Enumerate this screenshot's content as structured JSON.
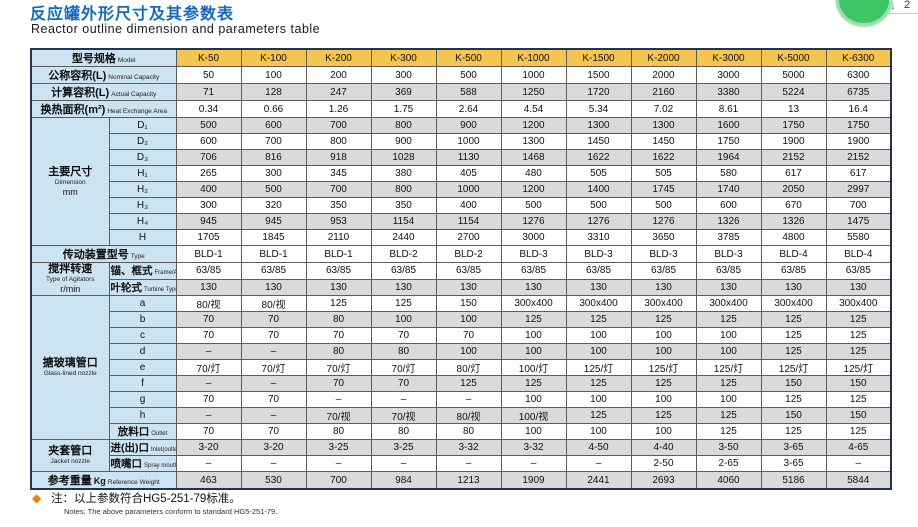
{
  "page": {
    "title_zh": "反应罐外形尺寸及其参数表",
    "title_en": "Reactor outline dimension and parameters table"
  },
  "badge": {
    "arrow": "↓",
    "count": "2",
    "green": "#3dc565"
  },
  "colors": {
    "title_blue": "#1468be",
    "header_yellow": "#f5c54f",
    "label_blue": "#cce3f1",
    "stripe_gray": "#dadada",
    "diamond_orange": "#e8801e"
  },
  "table": {
    "header": {
      "label_zh": "型号规格",
      "label_en": "Model",
      "models": [
        "K-50",
        "K-100",
        "K-200",
        "K-300",
        "K-500",
        "K-1000",
        "K-1500",
        "K-2000",
        "K-3000",
        "K-5000",
        "K-6300"
      ]
    },
    "groups": {
      "dimension": {
        "zh": "主要尺寸",
        "en": "Dimension",
        "unit": "mm",
        "span": 8
      },
      "agitator": {
        "zh": "搅拌转速",
        "en": "Type of Agitators",
        "unit": "r/min",
        "span": 2
      },
      "nozzle": {
        "zh": "搪玻璃管口",
        "en": "Glass-lined nozzle",
        "unit": "",
        "span": 9
      },
      "jacket": {
        "zh": "夹套管口",
        "en": "Jacket nozzle",
        "unit": "",
        "span": 2
      }
    },
    "rows": [
      {
        "id": "nominal",
        "full": true,
        "label_zh": "公称容积(L)",
        "label_en": "Nominal Capacity",
        "shade": false,
        "values": [
          "50",
          "100",
          "200",
          "300",
          "500",
          "1000",
          "1500",
          "2000",
          "3000",
          "5000",
          "6300"
        ]
      },
      {
        "id": "actual",
        "full": true,
        "label_zh": "计算容积(L)",
        "label_en": "Actual Capacity",
        "shade": true,
        "values": [
          "71",
          "128",
          "247",
          "369",
          "588",
          "1250",
          "1720",
          "2160",
          "3380",
          "5224",
          "6735"
        ]
      },
      {
        "id": "heat",
        "full": true,
        "label_zh": "换热面积(m²)",
        "label_en": "Heat Exchange Area",
        "shade": false,
        "values": [
          "0.34",
          "0.66",
          "1.26",
          "1.75",
          "2.64",
          "4.54",
          "5.34",
          "7.02",
          "8.61",
          "13",
          "16.4"
        ]
      },
      {
        "id": "d1",
        "group": "dimension",
        "sub": "D₁",
        "shade": true,
        "values": [
          "500",
          "600",
          "700",
          "800",
          "900",
          "1200",
          "1300",
          "1300",
          "1600",
          "1750",
          "1750"
        ]
      },
      {
        "id": "d2",
        "group": "dimension",
        "sub": "D₂",
        "shade": false,
        "values": [
          "600",
          "700",
          "800",
          "900",
          "1000",
          "1300",
          "1450",
          "1450",
          "1750",
          "1900",
          "1900"
        ]
      },
      {
        "id": "d3",
        "group": "dimension",
        "sub": "D₃",
        "shade": true,
        "values": [
          "706",
          "816",
          "918",
          "1028",
          "1130",
          "1468",
          "1622",
          "1622",
          "1964",
          "2152",
          "2152"
        ]
      },
      {
        "id": "h1",
        "group": "dimension",
        "sub": "H₁",
        "shade": false,
        "values": [
          "265",
          "300",
          "345",
          "380",
          "405",
          "480",
          "505",
          "505",
          "580",
          "617",
          "617"
        ]
      },
      {
        "id": "h2",
        "group": "dimension",
        "sub": "H₂",
        "shade": true,
        "values": [
          "400",
          "500",
          "700",
          "800",
          "1000",
          "1200",
          "1400",
          "1745",
          "1740",
          "2050",
          "2997"
        ]
      },
      {
        "id": "h3",
        "group": "dimension",
        "sub": "H₃",
        "shade": false,
        "values": [
          "300",
          "320",
          "350",
          "350",
          "400",
          "500",
          "500",
          "500",
          "600",
          "670",
          "700"
        ]
      },
      {
        "id": "h4",
        "group": "dimension",
        "sub": "H₄",
        "shade": true,
        "values": [
          "945",
          "945",
          "953",
          "1154",
          "1154",
          "1276",
          "1276",
          "1276",
          "1326",
          "1326",
          "1475"
        ]
      },
      {
        "id": "h",
        "group": "dimension",
        "sub": "H",
        "shade": false,
        "values": [
          "1705",
          "1845",
          "2110",
          "2440",
          "2700",
          "3000",
          "3310",
          "3650",
          "3785",
          "4800",
          "5580"
        ]
      },
      {
        "id": "type",
        "full": true,
        "label_zh": "传动装置型号",
        "label_en": "Type",
        "shade": false,
        "values": [
          "BLD-1",
          "BLD-1",
          "BLD-1",
          "BLD-2",
          "BLD-2",
          "BLD-3",
          "BLD-3",
          "BLD-3",
          "BLD-3",
          "BLD-4",
          "BLD-4"
        ]
      },
      {
        "id": "frame",
        "group": "agitator",
        "sub_zh": "锚、框式",
        "sub_en": "Frame/Anchor Type",
        "shade": false,
        "values": [
          "63/85",
          "63/85",
          "63/85",
          "63/85",
          "63/85",
          "63/85",
          "63/85",
          "63/85",
          "63/85",
          "63/85",
          "63/85"
        ]
      },
      {
        "id": "turbine",
        "group": "agitator",
        "sub_zh": "叶轮式",
        "sub_en": "Turbine Type",
        "shade": true,
        "values": [
          "130",
          "130",
          "130",
          "130",
          "130",
          "130",
          "130",
          "130",
          "130",
          "130",
          "130"
        ]
      },
      {
        "id": "a",
        "group": "nozzle",
        "sub": "a",
        "shade": false,
        "values": [
          "80/视",
          "80/视",
          "125",
          "125",
          "150",
          "300x400",
          "300x400",
          "300x400",
          "300x400",
          "300x400",
          "300x400"
        ]
      },
      {
        "id": "b",
        "group": "nozzle",
        "sub": "b",
        "shade": true,
        "values": [
          "70",
          "70",
          "80",
          "100",
          "100",
          "125",
          "125",
          "125",
          "125",
          "125",
          "125"
        ]
      },
      {
        "id": "c",
        "group": "nozzle",
        "sub": "c",
        "shade": false,
        "values": [
          "70",
          "70",
          "70",
          "70",
          "70",
          "100",
          "100",
          "100",
          "100",
          "125",
          "125"
        ]
      },
      {
        "id": "d",
        "group": "nozzle",
        "sub": "d",
        "shade": true,
        "values": [
          "–",
          "–",
          "80",
          "80",
          "100",
          "100",
          "100",
          "100",
          "100",
          "125",
          "125"
        ]
      },
      {
        "id": "e",
        "group": "nozzle",
        "sub": "e",
        "shade": false,
        "values": [
          "70/灯",
          "70/灯",
          "70/灯",
          "70/灯",
          "80/灯",
          "100/灯",
          "125/灯",
          "125/灯",
          "125/灯",
          "125/灯",
          "125/灯"
        ]
      },
      {
        "id": "f",
        "group": "nozzle",
        "sub": "f",
        "shade": true,
        "values": [
          "–",
          "–",
          "70",
          "70",
          "125",
          "125",
          "125",
          "125",
          "125",
          "150",
          "150"
        ]
      },
      {
        "id": "g",
        "group": "nozzle",
        "sub": "g",
        "shade": false,
        "values": [
          "70",
          "70",
          "–",
          "–",
          "–",
          "100",
          "100",
          "100",
          "100",
          "125",
          "125"
        ]
      },
      {
        "id": "h_noz",
        "group": "nozzle",
        "sub": "h",
        "shade": true,
        "values": [
          "–",
          "–",
          "70/视",
          "70/视",
          "80/视",
          "100/视",
          "125",
          "125",
          "125",
          "150",
          "150"
        ]
      },
      {
        "id": "outlet",
        "group": "nozzle",
        "sub_zh": "放料口",
        "sub_en": "Outlet",
        "shade": false,
        "values": [
          "70",
          "70",
          "80",
          "80",
          "80",
          "100",
          "100",
          "100",
          "125",
          "125",
          "125"
        ]
      },
      {
        "id": "inlet",
        "group": "jacket",
        "sub_zh": "进(出)口",
        "sub_en": "Inlet(outlet)",
        "shade": true,
        "values": [
          "3-20",
          "3-20",
          "3-25",
          "3-25",
          "3-32",
          "3-32",
          "4-50",
          "4-40",
          "3-50",
          "3-65",
          "4-65"
        ]
      },
      {
        "id": "spray",
        "group": "jacket",
        "sub_zh": "喷嘴口",
        "sub_en": "Spray mouth",
        "shade": false,
        "values": [
          "–",
          "–",
          "–",
          "–",
          "–",
          "–",
          "–",
          "2-50",
          "2-65",
          "3-65",
          "–"
        ]
      },
      {
        "id": "weight",
        "full": true,
        "label_zh": "参考重量",
        "label_unit": "Kg",
        "label_en": "Reference Weight",
        "shade": true,
        "values": [
          "463",
          "530",
          "700",
          "984",
          "1213",
          "1909",
          "2441",
          "2693",
          "4060",
          "5186",
          "5844"
        ]
      }
    ]
  },
  "footnote": {
    "diamond": "◆",
    "note_zh": "注：以上参数符合HG5-251-79标准。",
    "note_en": "Notes: The above parameters conform to standard HG5-251-79."
  }
}
